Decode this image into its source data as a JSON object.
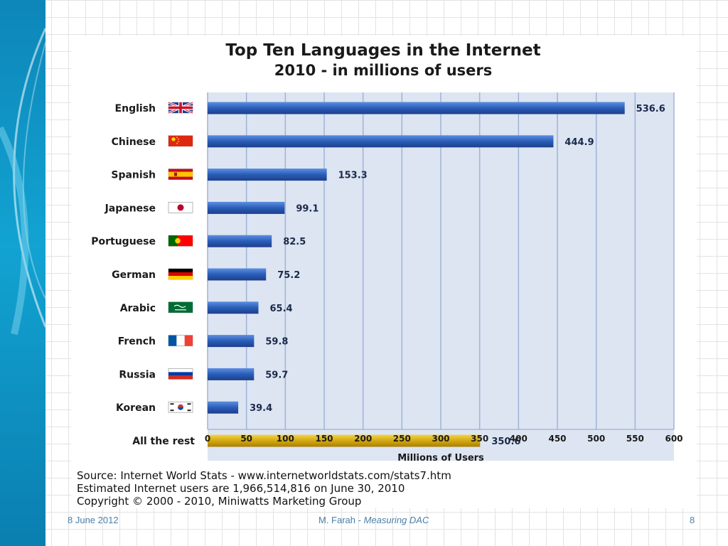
{
  "chart_data": {
    "type": "bar",
    "orientation": "horizontal",
    "title": "Top Ten Languages in the Internet",
    "subtitle": "2010 - in millions of users",
    "categories": [
      "English",
      "Chinese",
      "Spanish",
      "Japanese",
      "Portuguese",
      "German",
      "Arabic",
      "French",
      "Russia",
      "Korean",
      "All the rest"
    ],
    "values": [
      536.6,
      444.9,
      153.3,
      99.1,
      82.5,
      75.2,
      65.4,
      59.8,
      59.7,
      39.4,
      350.6
    ],
    "value_labels": [
      "536.6",
      "444.9",
      "153.3",
      "99.1",
      "82.5",
      "75.2",
      "65.4",
      "59.8",
      "59.7",
      "39.4",
      "350.6"
    ],
    "flags": [
      "uk-flag-icon",
      "china-flag-icon",
      "spain-flag-icon",
      "japan-flag-icon",
      "portugal-flag-icon",
      "germany-flag-icon",
      "saudi-arabia-flag-icon",
      "france-flag-icon",
      "russia-flag-icon",
      "korea-flag-icon",
      ""
    ],
    "xlabel": "Millions of Users",
    "ylabel": "",
    "xlim": [
      0,
      600
    ],
    "xticks": [
      0,
      50,
      100,
      150,
      200,
      250,
      300,
      350,
      400,
      450,
      500,
      550,
      600
    ],
    "grid": true,
    "colors": {
      "bar": "#2a5db8",
      "bar_highlight": "#d4a90f",
      "plot_background": "#dde5f2",
      "grid": "#9fb4d8",
      "text": "#1a1a1a",
      "value_label": "#1a2a4a"
    },
    "source_lines": [
      "Source: Internet World Stats - www.internetworldstats.com/stats7.htm",
      "Estimated Internet users are 1,966,514,816 on June 30, 2010",
      "Copyright © 2000 - 2010, Miniwatts Marketing Group"
    ]
  },
  "footer": {
    "date": "8 June 2012",
    "author": "M. Farah - ",
    "talk_title": "Measuring DAC",
    "page": "8"
  },
  "theme": {
    "side_band": "#12a3d2"
  }
}
